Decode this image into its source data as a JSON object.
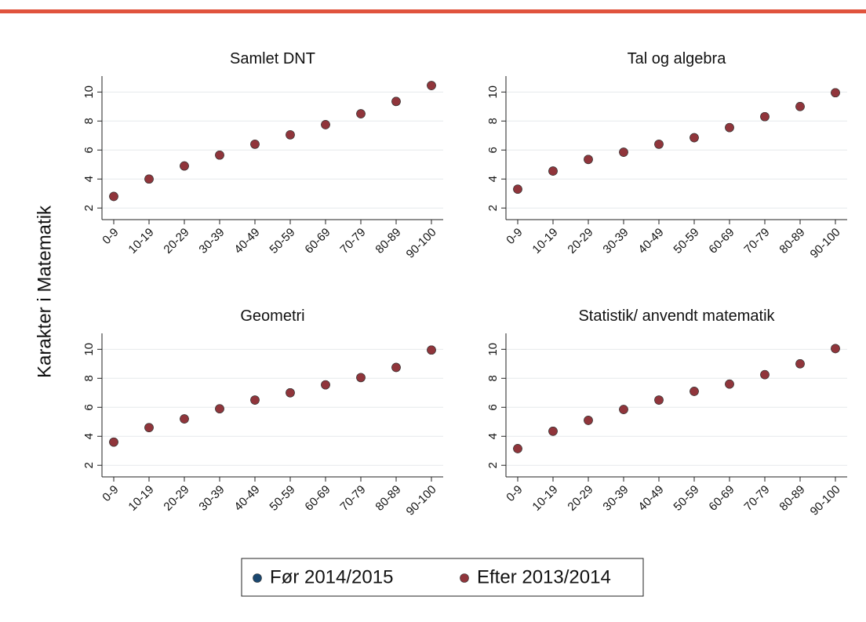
{
  "ylabel": "Karakter i Matematik",
  "chart_data": [
    {
      "type": "scatter",
      "title": "Samlet DNT",
      "categories": [
        "0-9",
        "10-19",
        "20-29",
        "30-39",
        "40-49",
        "50-59",
        "60-69",
        "70-79",
        "80-89",
        "90-100"
      ],
      "series": [
        {
          "name": "Før 2014/2015",
          "color": "#1a476f",
          "values": [
            2.8,
            4.0,
            4.9,
            5.65,
            6.4,
            7.05,
            7.75,
            8.5,
            9.35,
            10.45
          ]
        },
        {
          "name": "Efter 2013/2014",
          "color": "#90353b",
          "values": [
            2.8,
            4.0,
            4.9,
            5.65,
            6.4,
            7.05,
            7.75,
            8.5,
            9.35,
            10.45
          ]
        }
      ],
      "ylim": [
        1.2,
        11.1
      ],
      "yticks": [
        2,
        4,
        6,
        8,
        10
      ],
      "grid": true
    },
    {
      "type": "scatter",
      "title": "Tal og algebra",
      "categories": [
        "0-9",
        "10-19",
        "20-29",
        "30-39",
        "40-49",
        "50-59",
        "60-69",
        "70-79",
        "80-89",
        "90-100"
      ],
      "series": [
        {
          "name": "Før 2014/2015",
          "color": "#1a476f",
          "values": [
            3.3,
            4.55,
            5.35,
            5.85,
            6.4,
            6.85,
            7.55,
            8.3,
            9.0,
            9.95
          ]
        },
        {
          "name": "Efter 2013/2014",
          "color": "#90353b",
          "values": [
            3.3,
            4.55,
            5.35,
            5.85,
            6.4,
            6.85,
            7.55,
            8.3,
            9.0,
            9.95
          ]
        }
      ],
      "ylim": [
        1.2,
        11.1
      ],
      "yticks": [
        2,
        4,
        6,
        8,
        10
      ],
      "grid": true
    },
    {
      "type": "scatter",
      "title": "Geometri",
      "categories": [
        "0-9",
        "10-19",
        "20-29",
        "30-39",
        "40-49",
        "50-59",
        "60-69",
        "70-79",
        "80-89",
        "90-100"
      ],
      "series": [
        {
          "name": "Før 2014/2015",
          "color": "#1a476f",
          "values": [
            3.6,
            4.6,
            5.2,
            5.9,
            6.5,
            7.0,
            7.55,
            8.05,
            8.75,
            9.95
          ]
        },
        {
          "name": "Efter 2013/2014",
          "color": "#90353b",
          "values": [
            3.6,
            4.6,
            5.2,
            5.9,
            6.5,
            7.0,
            7.55,
            8.05,
            8.75,
            9.95
          ]
        }
      ],
      "ylim": [
        1.2,
        11.1
      ],
      "yticks": [
        2,
        4,
        6,
        8,
        10
      ],
      "grid": true
    },
    {
      "type": "scatter",
      "title": "Statistik/ anvendt matematik",
      "categories": [
        "0-9",
        "10-19",
        "20-29",
        "30-39",
        "40-49",
        "50-59",
        "60-69",
        "70-79",
        "80-89",
        "90-100"
      ],
      "series": [
        {
          "name": "Før 2014/2015",
          "color": "#1a476f",
          "values": [
            3.15,
            4.35,
            5.1,
            5.85,
            6.5,
            7.1,
            7.6,
            8.25,
            9.0,
            10.05
          ]
        },
        {
          "name": "Efter 2013/2014",
          "color": "#90353b",
          "values": [
            3.15,
            4.35,
            5.1,
            5.85,
            6.5,
            7.1,
            7.6,
            8.25,
            9.0,
            10.05
          ]
        }
      ],
      "ylim": [
        1.2,
        11.1
      ],
      "yticks": [
        2,
        4,
        6,
        8,
        10
      ],
      "grid": true
    }
  ]
}
